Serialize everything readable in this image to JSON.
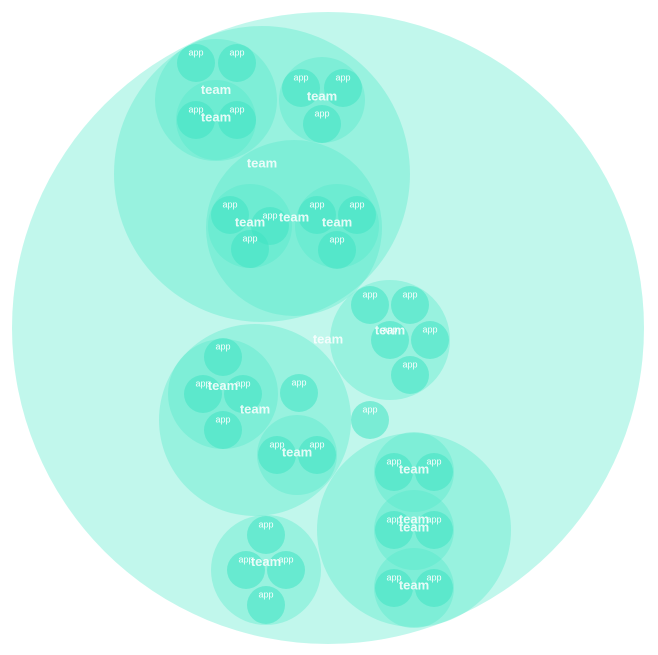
{
  "labels": {
    "team": "team",
    "app": "app"
  },
  "colors": {
    "fill": "#4de8c9",
    "leaf_fill": "#3fe3c3",
    "label": "#ffffff"
  },
  "hierarchy": {
    "type": "team",
    "children": [
      {
        "type": "team",
        "children": [
          {
            "type": "team",
            "children": [
              {
                "type": "app"
              },
              {
                "type": "app"
              },
              {
                "type": "team",
                "children": [
                  {
                    "type": "app"
                  },
                  {
                    "type": "app"
                  }
                ]
              }
            ]
          },
          {
            "type": "team",
            "children": [
              {
                "type": "app"
              },
              {
                "type": "app"
              },
              {
                "type": "app"
              }
            ]
          },
          {
            "type": "team",
            "children": [
              {
                "type": "team",
                "children": [
                  {
                    "type": "app"
                  },
                  {
                    "type": "app"
                  },
                  {
                    "type": "app"
                  }
                ]
              },
              {
                "type": "team",
                "children": [
                  {
                    "type": "app"
                  },
                  {
                    "type": "app"
                  },
                  {
                    "type": "app"
                  }
                ]
              }
            ]
          }
        ]
      },
      {
        "type": "team",
        "children": [
          {
            "type": "app"
          },
          {
            "type": "app"
          },
          {
            "type": "app"
          },
          {
            "type": "app"
          },
          {
            "type": "app"
          }
        ]
      },
      {
        "type": "app"
      },
      {
        "type": "team",
        "children": [
          {
            "type": "team",
            "children": [
              {
                "type": "app"
              },
              {
                "type": "app"
              },
              {
                "type": "app"
              },
              {
                "type": "app"
              }
            ]
          },
          {
            "type": "app"
          },
          {
            "type": "team",
            "children": [
              {
                "type": "app"
              },
              {
                "type": "app"
              }
            ]
          }
        ]
      },
      {
        "type": "team",
        "children": [
          {
            "type": "app"
          },
          {
            "type": "app"
          },
          {
            "type": "app"
          },
          {
            "type": "app"
          }
        ]
      },
      {
        "type": "team",
        "children": [
          {
            "type": "team",
            "children": [
              {
                "type": "app"
              },
              {
                "type": "app"
              }
            ]
          },
          {
            "type": "team",
            "children": [
              {
                "type": "app"
              },
              {
                "type": "app"
              }
            ]
          },
          {
            "type": "team",
            "children": [
              {
                "type": "app"
              },
              {
                "type": "app"
              }
            ]
          }
        ]
      }
    ]
  }
}
